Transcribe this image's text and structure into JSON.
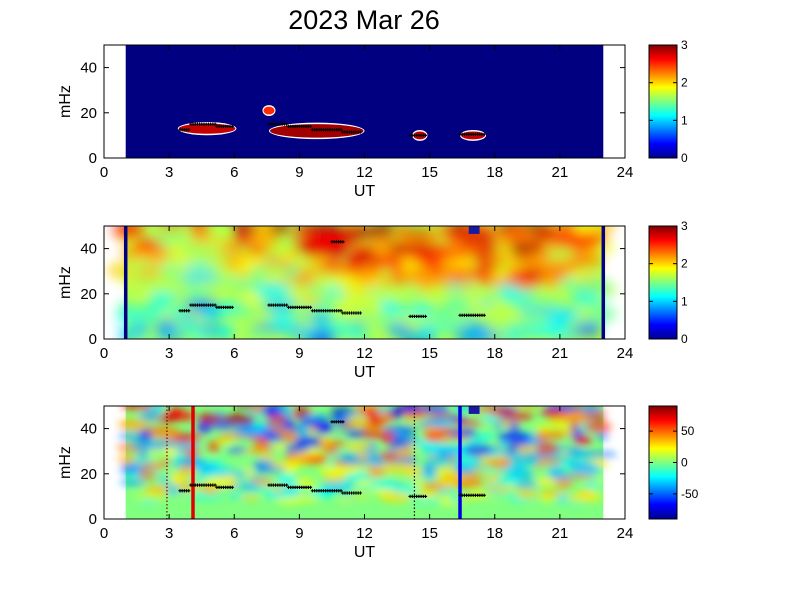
{
  "figure": {
    "title": "2023 Mar 26"
  },
  "chart_data": [
    {
      "type": "heatmap",
      "panel": "top",
      "xlabel": "UT",
      "ylabel": "mHz",
      "xlim": [
        0,
        24
      ],
      "ylim": [
        0,
        50
      ],
      "xticks": [
        0,
        3,
        6,
        9,
        12,
        15,
        18,
        21,
        24
      ],
      "yticks": [
        0,
        20,
        40
      ],
      "colorbar": {
        "min": 0,
        "max": 3,
        "ticks": [
          0,
          1,
          2,
          3
        ]
      },
      "data_extent_x": [
        1,
        23
      ],
      "background_value": 0,
      "blobs": [
        {
          "x0": 3.4,
          "x1": 6.1,
          "y": 13,
          "height": 4.5,
          "value": 2.8
        },
        {
          "x0": 7.6,
          "x1": 12.0,
          "y": 12,
          "height": 6,
          "value": 2.9
        },
        {
          "x0": 14.2,
          "x1": 14.9,
          "y": 10,
          "height": 3.5,
          "value": 2.8
        },
        {
          "x0": 16.4,
          "x1": 17.6,
          "y": 10,
          "height": 3.5,
          "value": 2.8
        },
        {
          "x0": 7.3,
          "x1": 7.9,
          "y": 21,
          "height": 3.5,
          "value": 2.5
        }
      ],
      "dots": [
        {
          "x0": 3.5,
          "x1": 4.0,
          "y": 12.5
        },
        {
          "x0": 4.0,
          "x1": 5.2,
          "y": 15
        },
        {
          "x0": 5.2,
          "x1": 6.0,
          "y": 14
        },
        {
          "x0": 7.6,
          "x1": 8.5,
          "y": 15
        },
        {
          "x0": 8.5,
          "x1": 9.6,
          "y": 14
        },
        {
          "x0": 9.6,
          "x1": 11.0,
          "y": 12.5
        },
        {
          "x0": 11.0,
          "x1": 11.9,
          "y": 11.5
        },
        {
          "x0": 14.1,
          "x1": 14.9,
          "y": 10
        },
        {
          "x0": 16.4,
          "x1": 17.6,
          "y": 10.5
        }
      ]
    },
    {
      "type": "heatmap",
      "panel": "middle",
      "xlabel": "UT",
      "ylabel": "mHz",
      "xlim": [
        0,
        24
      ],
      "ylim": [
        0,
        50
      ],
      "xticks": [
        0,
        3,
        6,
        9,
        12,
        15,
        18,
        21,
        24
      ],
      "yticks": [
        0,
        20,
        40
      ],
      "colorbar": {
        "min": 0,
        "max": 3,
        "ticks": [
          0,
          1,
          2,
          3
        ]
      },
      "data_extent_x": [
        1,
        23
      ],
      "vlines": [
        {
          "x": 1.0,
          "color": "#000080",
          "style": "solid"
        },
        {
          "x": 23.0,
          "color": "#000080",
          "style": "solid"
        }
      ],
      "dots": [
        {
          "x0": 3.5,
          "x1": 4.0,
          "y": 12.5
        },
        {
          "x0": 4.0,
          "x1": 5.2,
          "y": 15
        },
        {
          "x0": 5.2,
          "x1": 6.0,
          "y": 14
        },
        {
          "x0": 7.6,
          "x1": 8.5,
          "y": 15
        },
        {
          "x0": 8.5,
          "x1": 9.6,
          "y": 14
        },
        {
          "x0": 9.6,
          "x1": 11.0,
          "y": 12.5
        },
        {
          "x0": 11.0,
          "x1": 11.9,
          "y": 11.5
        },
        {
          "x0": 14.1,
          "x1": 14.9,
          "y": 10
        },
        {
          "x0": 16.4,
          "x1": 17.6,
          "y": 10.5
        },
        {
          "x0": 10.5,
          "x1": 11.1,
          "y": 43
        }
      ],
      "patches": [
        {
          "x0": 16.8,
          "x1": 17.3,
          "y0": 46.5,
          "y1": 50,
          "color": "#1a1aa0"
        }
      ]
    },
    {
      "type": "heatmap",
      "panel": "bottom",
      "xlabel": "UT",
      "ylabel": "mHz",
      "xlim": [
        0,
        24
      ],
      "ylim": [
        0,
        50
      ],
      "xticks": [
        0,
        3,
        6,
        9,
        12,
        15,
        18,
        21,
        24
      ],
      "yticks": [
        0,
        20,
        40
      ],
      "colorbar": {
        "min": -90,
        "max": 90,
        "ticks": [
          50,
          0,
          -50
        ]
      },
      "data_extent_x": [
        1,
        23
      ],
      "vlines": [
        {
          "x": 2.9,
          "color": "#800000",
          "style": "dotted"
        },
        {
          "x": 4.1,
          "color": "#e00000",
          "style": "solid"
        },
        {
          "x": 14.3,
          "color": "#000000",
          "style": "dotted"
        },
        {
          "x": 16.4,
          "color": "#0000e0",
          "style": "solid"
        }
      ],
      "dots": [
        {
          "x0": 3.5,
          "x1": 4.0,
          "y": 12.5
        },
        {
          "x0": 4.0,
          "x1": 5.2,
          "y": 15
        },
        {
          "x0": 5.2,
          "x1": 6.0,
          "y": 14
        },
        {
          "x0": 7.6,
          "x1": 8.5,
          "y": 15
        },
        {
          "x0": 8.5,
          "x1": 9.6,
          "y": 14
        },
        {
          "x0": 9.6,
          "x1": 11.0,
          "y": 12.5
        },
        {
          "x0": 11.0,
          "x1": 11.9,
          "y": 11.5
        },
        {
          "x0": 14.1,
          "x1": 14.9,
          "y": 10
        },
        {
          "x0": 16.4,
          "x1": 17.6,
          "y": 10.5
        },
        {
          "x0": 10.5,
          "x1": 11.1,
          "y": 43
        }
      ],
      "patches": [
        {
          "x0": 16.8,
          "x1": 17.3,
          "y0": 46.5,
          "y1": 50,
          "color": "#1a1aa0"
        }
      ]
    }
  ]
}
